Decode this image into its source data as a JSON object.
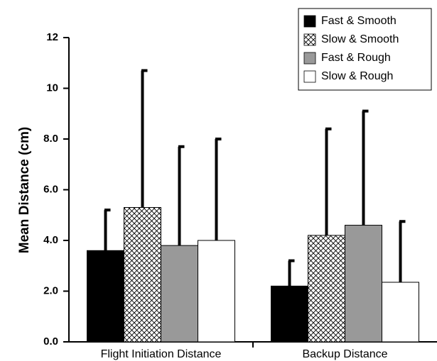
{
  "chart_data": {
    "type": "bar",
    "ylabel": "Mean Distance (cm)",
    "categories": [
      "Flight Initiation Distance",
      "Backup Distance"
    ],
    "series": [
      {
        "name": "Fast & Smooth",
        "color": "#000000",
        "values": [
          3.6,
          2.2
        ],
        "errors": [
          1.6,
          1.0
        ]
      },
      {
        "name": "Slow & Smooth",
        "color": "#ffffff",
        "hatch": "crosshatch",
        "values": [
          5.3,
          4.2
        ],
        "errors": [
          5.4,
          4.2
        ]
      },
      {
        "name": "Fast & Rough",
        "color": "#999999",
        "values": [
          3.8,
          4.6
        ],
        "errors": [
          3.9,
          4.5
        ]
      },
      {
        "name": "Slow & Rough",
        "color": "#ffffff",
        "values": [
          4.0,
          2.35
        ],
        "errors": [
          4.0,
          2.4
        ]
      }
    ],
    "ylim": [
      0,
      12
    ],
    "yticks": [
      {
        "value": 0,
        "label": "0.0"
      },
      {
        "value": 2,
        "label": "2.0"
      },
      {
        "value": 4,
        "label": "4.0"
      },
      {
        "value": 6,
        "label": "6.0"
      },
      {
        "value": 8,
        "label": "8.0"
      },
      10,
      12
    ],
    "legend": "upper right"
  }
}
